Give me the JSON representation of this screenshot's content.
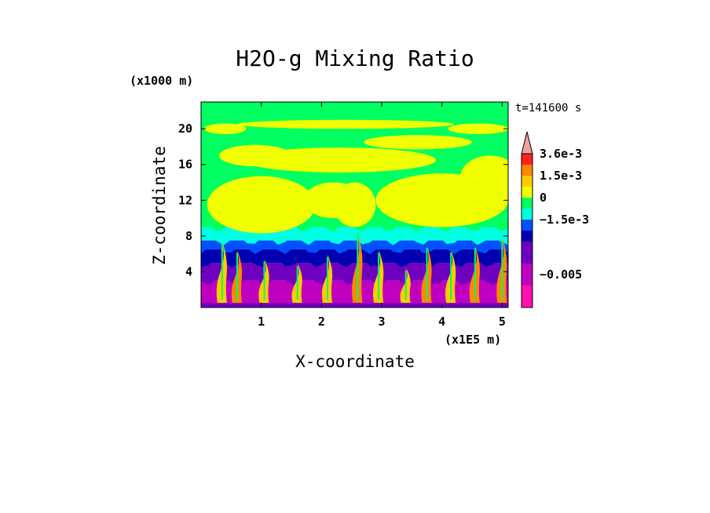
{
  "chart_data": {
    "type": "heatmap",
    "title": "H2O-g Mixing Ratio",
    "time_label": "t=141600 s",
    "xlabel": "X-coordinate",
    "ylabel": "Z-coordinate",
    "x_unit": "(x1E5 m)",
    "y_unit": "(x1000 m)",
    "x_ticks": [
      1,
      2,
      3,
      4,
      5
    ],
    "y_ticks": [
      4,
      8,
      12,
      16,
      20
    ],
    "xlim": [
      0,
      5.1
    ],
    "ylim": [
      0,
      23
    ],
    "colorbar": {
      "labels": [
        "3.6e-3",
        "1.5e-3",
        "0",
        "−1.5e-3",
        "−0.005"
      ],
      "colors": [
        "#f0a0a0",
        "#ff2020",
        "#ff8800",
        "#ffcc00",
        "#f0ff00",
        "#00ff60",
        "#00ffe0",
        "#0050ff",
        "#0000b0",
        "#7000c0",
        "#c000c0",
        "#ff10b0"
      ]
    },
    "field_bands": [
      {
        "z_min": 0,
        "z_max": 3,
        "color": "#c000c0"
      },
      {
        "z_min": 3,
        "z_max": 5,
        "color": "#7000c0"
      },
      {
        "z_min": 5,
        "z_max": 6.5,
        "color": "#0000b0"
      },
      {
        "z_min": 6.5,
        "z_max": 7.5,
        "color": "#0050ff"
      },
      {
        "z_min": 7.5,
        "z_max": 9,
        "color": "#00ffe0"
      },
      {
        "z_min": 9,
        "z_max": 23,
        "color": "#00ff60"
      }
    ],
    "field_patches": [
      {
        "x": 1.0,
        "z": 11.5,
        "rx": 0.9,
        "rz": 3.2,
        "color": "#f0ff00"
      },
      {
        "x": 2.2,
        "z": 12.0,
        "rx": 0.5,
        "rz": 2.0,
        "color": "#f0ff00"
      },
      {
        "x": 2.55,
        "z": 11.5,
        "rx": 0.35,
        "rz": 2.5,
        "color": "#f0ff00"
      },
      {
        "x": 4.0,
        "z": 12.0,
        "rx": 1.1,
        "rz": 3.0,
        "color": "#f0ff00"
      },
      {
        "x": 4.8,
        "z": 14.5,
        "rx": 0.5,
        "rz": 2.5,
        "color": "#f0ff00"
      },
      {
        "x": 2.3,
        "z": 16.5,
        "rx": 1.6,
        "rz": 1.4,
        "color": "#f0ff00"
      },
      {
        "x": 0.9,
        "z": 17.0,
        "rx": 0.6,
        "rz": 1.2,
        "color": "#f0ff00"
      },
      {
        "x": 3.6,
        "z": 18.5,
        "rx": 0.9,
        "rz": 0.8,
        "color": "#f0ff00"
      },
      {
        "x": 2.4,
        "z": 20.5,
        "rx": 1.8,
        "rz": 0.5,
        "color": "#f0ff00"
      },
      {
        "x": 0.4,
        "z": 20.0,
        "rx": 0.35,
        "rz": 0.6,
        "color": "#f0ff00"
      },
      {
        "x": 4.6,
        "z": 20.0,
        "rx": 0.5,
        "rz": 0.6,
        "color": "#f0ff00"
      }
    ],
    "plumes": [
      {
        "x": 0.35,
        "top": 7.5,
        "color": "#ffcc00"
      },
      {
        "x": 0.6,
        "top": 6.5,
        "color": "#ff8800"
      },
      {
        "x": 1.05,
        "top": 5.5,
        "color": "#ffcc00"
      },
      {
        "x": 1.6,
        "top": 5.0,
        "color": "#ffcc00"
      },
      {
        "x": 2.1,
        "top": 6.0,
        "color": "#ffcc00"
      },
      {
        "x": 2.6,
        "top": 8.5,
        "color": "#ff8800"
      },
      {
        "x": 2.95,
        "top": 6.5,
        "color": "#ffcc00"
      },
      {
        "x": 3.4,
        "top": 4.5,
        "color": "#ffcc00"
      },
      {
        "x": 3.75,
        "top": 7.0,
        "color": "#ff8800"
      },
      {
        "x": 4.15,
        "top": 6.5,
        "color": "#ffcc00"
      },
      {
        "x": 4.55,
        "top": 7.0,
        "color": "#ff8800"
      },
      {
        "x": 5.0,
        "top": 8.0,
        "color": "#ff8800"
      }
    ]
  }
}
